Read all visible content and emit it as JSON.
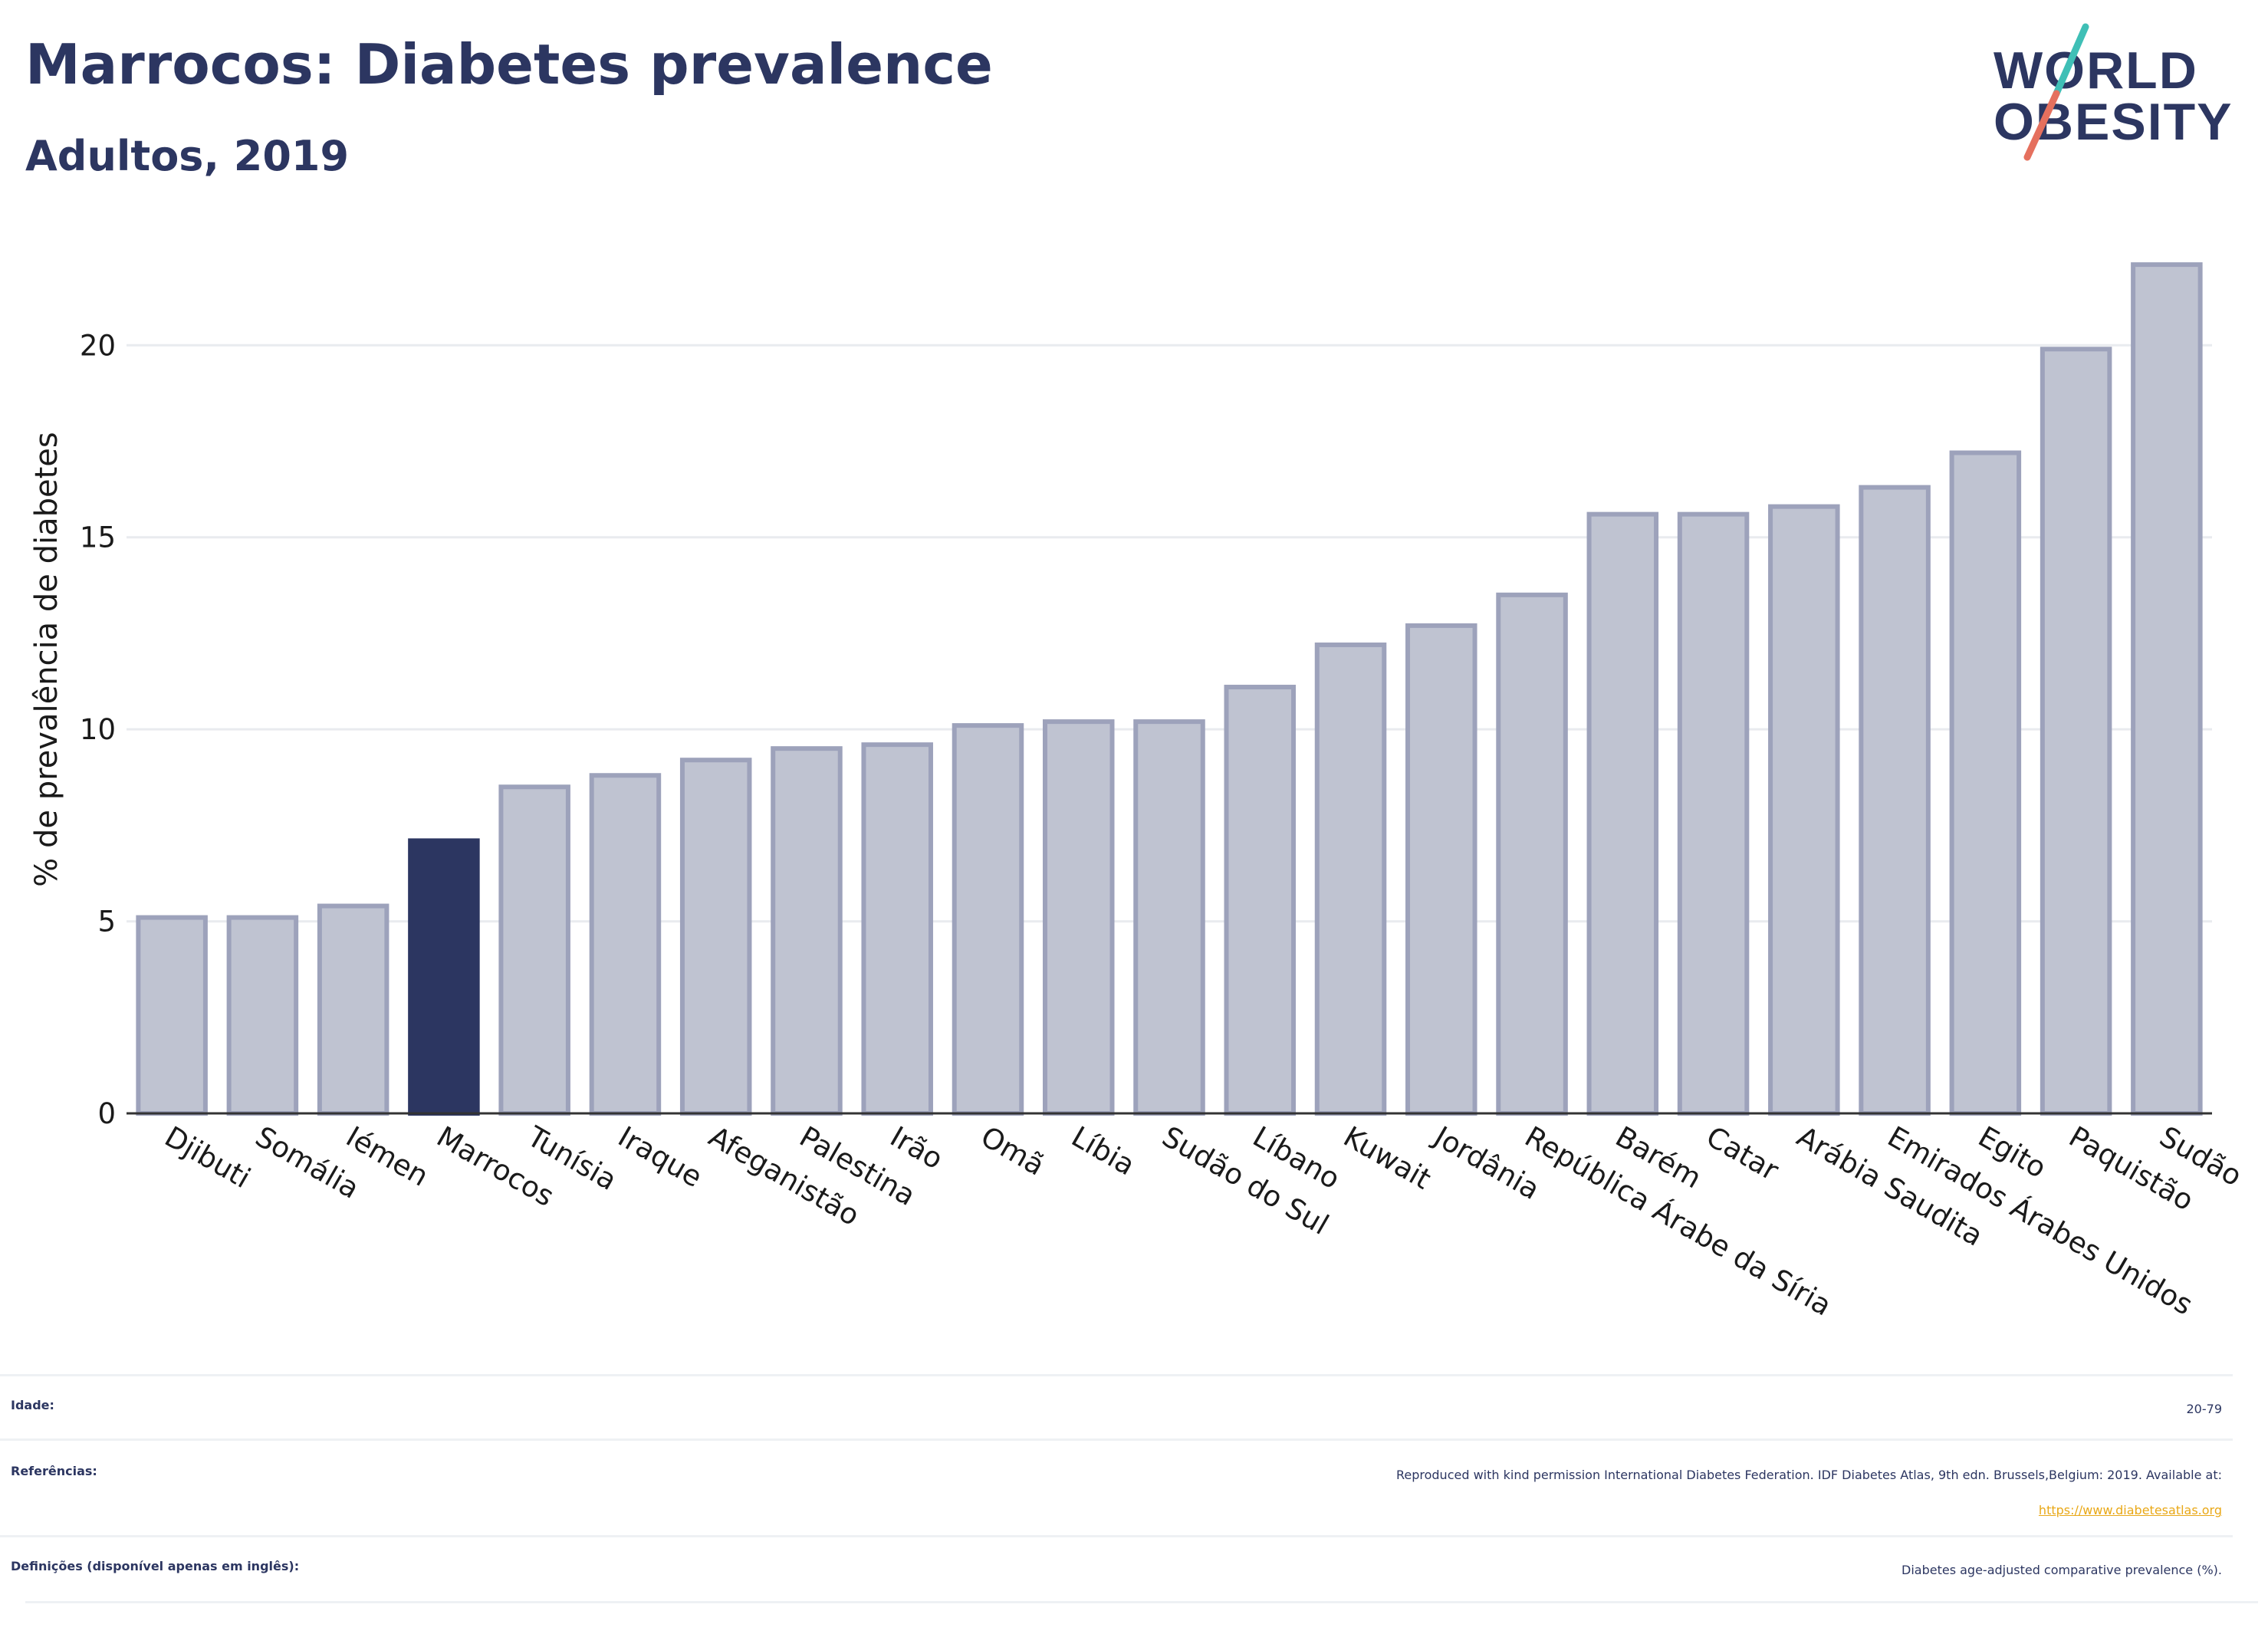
{
  "header": {
    "title": "Marrocos: Diabetes prevalence",
    "subtitle": "Adultos, 2019"
  },
  "logo": {
    "line1": "WORLD",
    "line2": "OBESITY",
    "icon": "slash-mark-icon",
    "colors": {
      "text": "#2c3661",
      "teal": "#3fbfb6",
      "coral": "#e5705e"
    }
  },
  "chart_data": {
    "type": "bar",
    "categories": [
      "Djibuti",
      "Somália",
      "Iémen",
      "Marrocos",
      "Tunísia",
      "Iraque",
      "Afeganistão",
      "Palestina",
      "Irão",
      "Omã",
      "Líbia",
      "Sudão do Sul",
      "Líbano",
      "Kuwait",
      "Jordânia",
      "República Árabe da Síria",
      "Barém",
      "Catar",
      "Arábia Saudita",
      "Emirados Árabes Unidos",
      "Egito",
      "Paquistão",
      "Sudão"
    ],
    "values": [
      5.1,
      5.1,
      5.4,
      7.1,
      8.5,
      8.8,
      9.2,
      9.5,
      9.6,
      10.1,
      10.2,
      10.2,
      11.1,
      12.2,
      12.7,
      13.5,
      15.6,
      15.6,
      15.8,
      16.3,
      17.2,
      19.9,
      22.1
    ],
    "highlight": "Marrocos",
    "ylabel": "% de prevalência de diabetes",
    "xlabel": "",
    "ylim": [
      0,
      23
    ],
    "yticks": [
      0,
      5,
      10,
      15,
      20
    ],
    "grid": true,
    "colors": {
      "bar": "#bfc3d1",
      "bar_border": "#9da2bb",
      "highlight": "#2c3661",
      "grid": "#e9ebef",
      "axis": "#333333"
    }
  },
  "info": {
    "age_label": "Idade:",
    "age_value": "20-79",
    "refs_label": "Referências:",
    "refs_text": "Reproduced with kind permission International Diabetes Federation. IDF Diabetes Atlas, 9th edn. Brussels,Belgium: 2019. Available at:",
    "refs_link": "https://www.diabetesatlas.org",
    "defs_label": "Definições (disponível apenas em inglês):",
    "defs_value": "Diabetes age-adjusted comparative prevalence (%)."
  }
}
